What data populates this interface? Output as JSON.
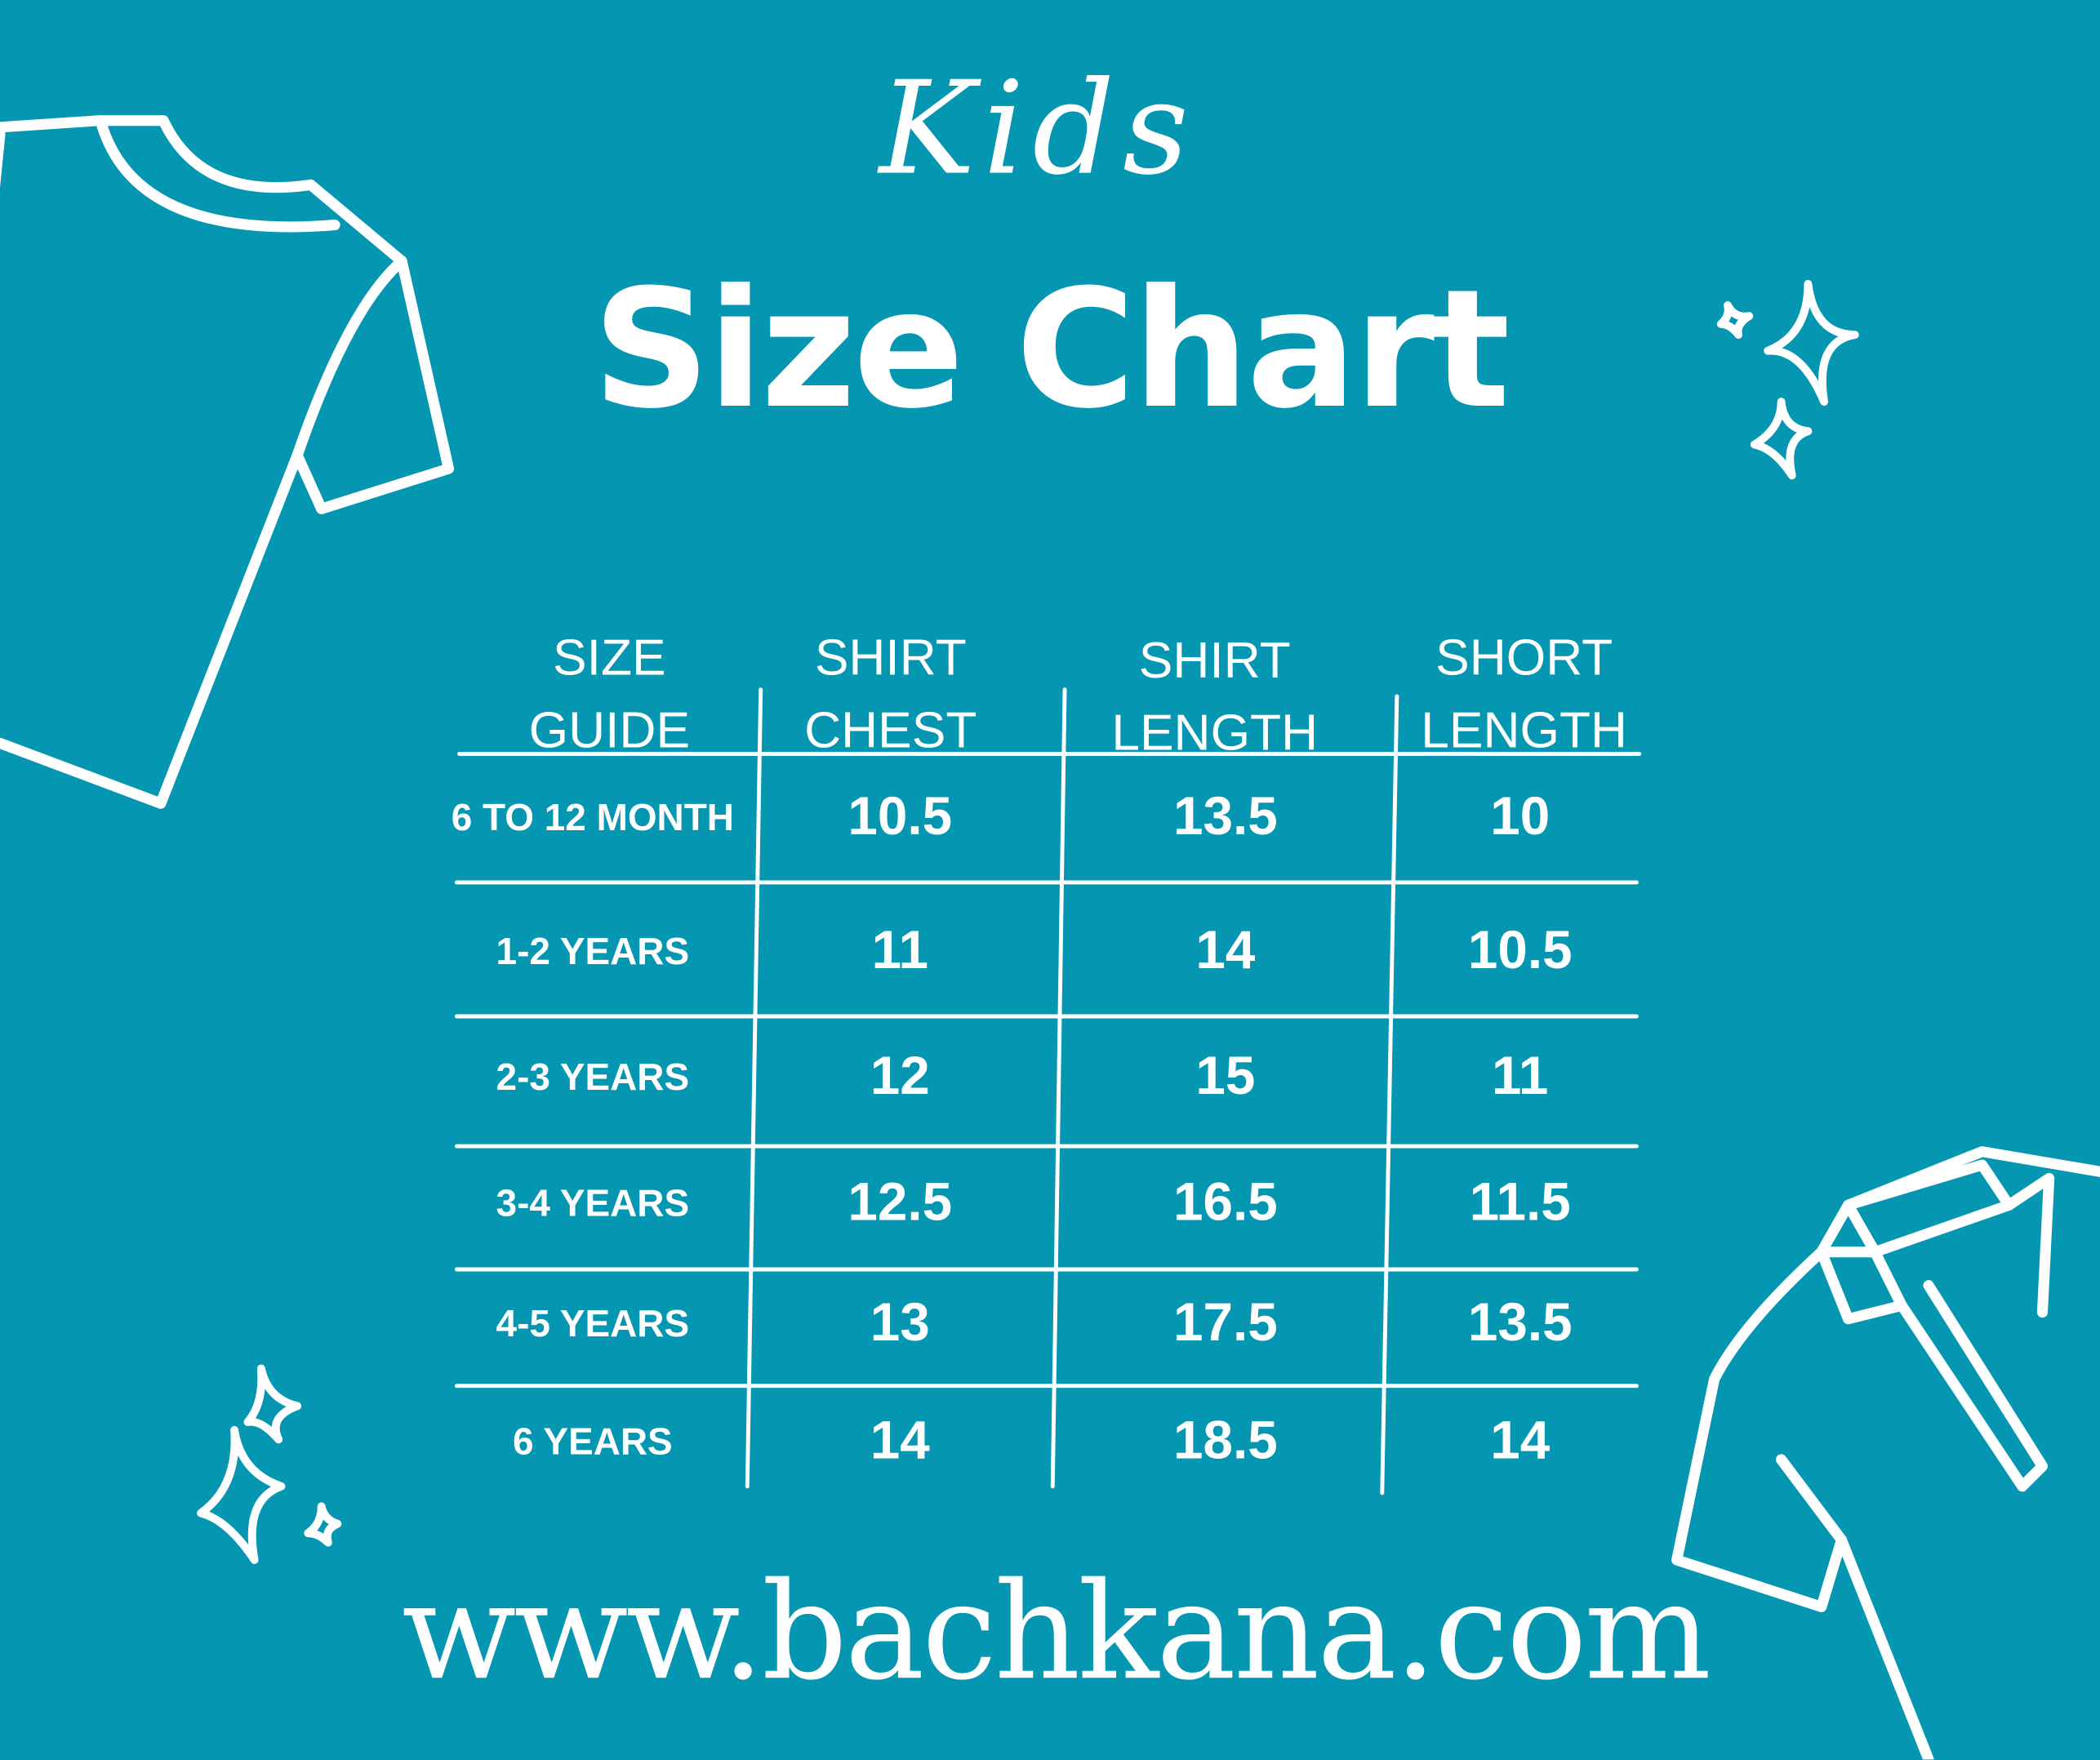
{
  "header": {
    "script_title": "Kids",
    "title": "Size Chart"
  },
  "table": {
    "headers": [
      [
        "SIZE",
        "GUIDE"
      ],
      [
        "SHIRT",
        "CHEST"
      ],
      [
        "SHIRT",
        "LENGTH"
      ],
      [
        "SHORT",
        "LENGTH"
      ]
    ],
    "rows": [
      [
        "6 TO 12 MONTH",
        "10.5",
        "13.5",
        "10"
      ],
      [
        "1-2 YEARS",
        "11",
        "14",
        "10.5"
      ],
      [
        "2-3 YEARS",
        "12",
        "15",
        "11"
      ],
      [
        "3-4 YEARS",
        "12.5",
        "16.5",
        "11.5"
      ],
      [
        "4-5 YEARS",
        "13",
        "17.5",
        "13.5"
      ],
      [
        "6 YEARS",
        "14",
        "18.5",
        "14"
      ]
    ]
  },
  "footer": {
    "url": "www.bachkana.com"
  },
  "colors": {
    "background": "#0597b2",
    "foreground": "#ffffff"
  },
  "icons": [
    "tshirt-icon",
    "polo-shirt-icon",
    "sparkle-icon"
  ]
}
